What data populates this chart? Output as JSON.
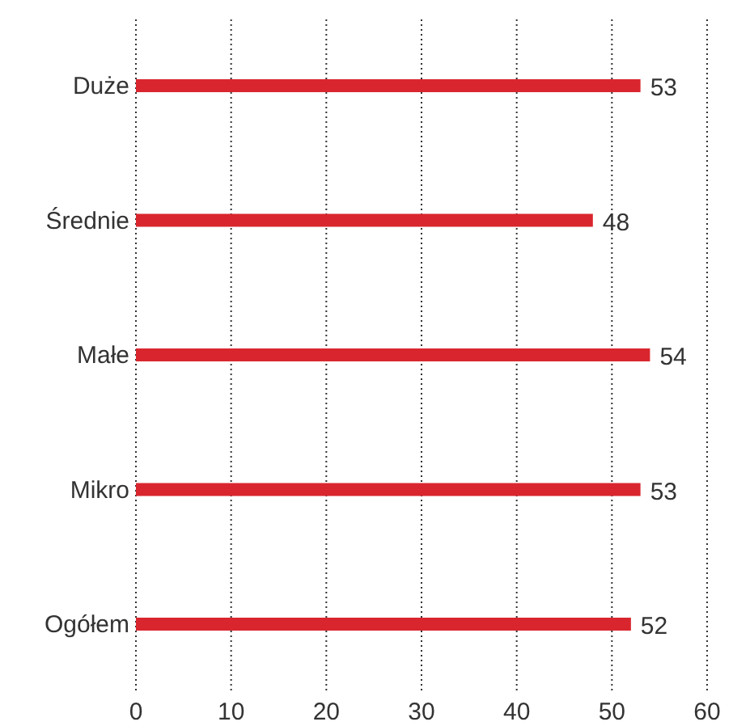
{
  "chart_data": {
    "type": "bar",
    "orientation": "horizontal",
    "categories": [
      "Duże",
      "Średnie",
      "Małe",
      "Mikro",
      "Ogółem"
    ],
    "values": [
      53,
      48,
      54,
      53,
      52
    ],
    "color": "#d9262e",
    "xlim": [
      0,
      60
    ],
    "xticks": [
      0,
      10,
      20,
      30,
      40,
      50,
      60
    ],
    "grid": "x",
    "data_labels": true
  }
}
